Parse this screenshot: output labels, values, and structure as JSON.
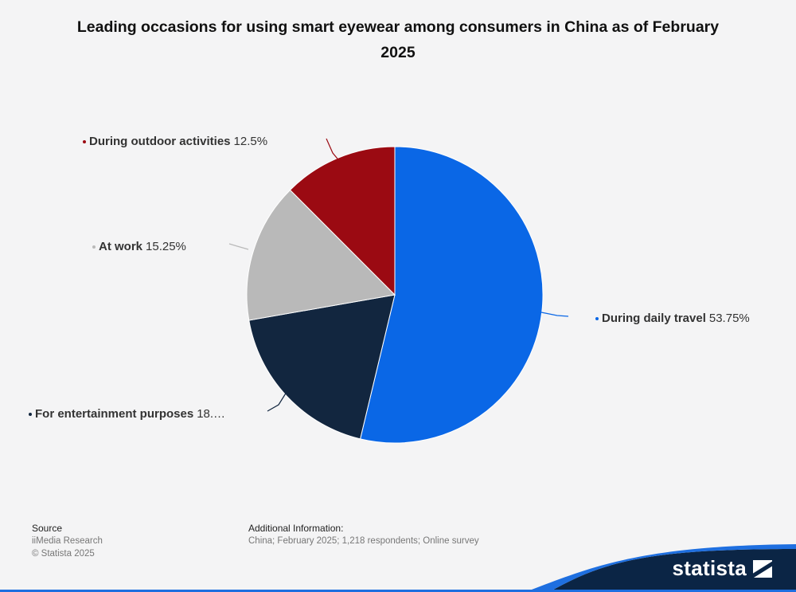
{
  "chart_data": {
    "type": "pie",
    "title": "Leading occasions for using smart eyewear among consumers in China as of February 2025",
    "slices": [
      {
        "label": "During daily travel",
        "value": 53.75,
        "value_text": "53.75%",
        "color": "#0a67e6",
        "label_color": "#0a67e6"
      },
      {
        "label": "For entertainment purposes",
        "value": 18.5,
        "value_text": "18.…",
        "color": "#12263f",
        "label_color": "#12263f"
      },
      {
        "label": "At work",
        "value": 15.25,
        "value_text": "15.25%",
        "color": "#b9b9b9",
        "label_color": "#b9b9b9"
      },
      {
        "label": "During outdoor activities",
        "value": 12.5,
        "value_text": "12.5%",
        "color": "#9b0a12",
        "label_color": "#9b0a12"
      }
    ]
  },
  "footer": {
    "source_heading": "Source",
    "source_name": "iiMedia Research",
    "copyright": "© Statista 2025",
    "additional_heading": "Additional Information:",
    "additional_text": "China; February 2025; 1,218 respondents; Online survey"
  },
  "brand": {
    "name": "statista"
  }
}
